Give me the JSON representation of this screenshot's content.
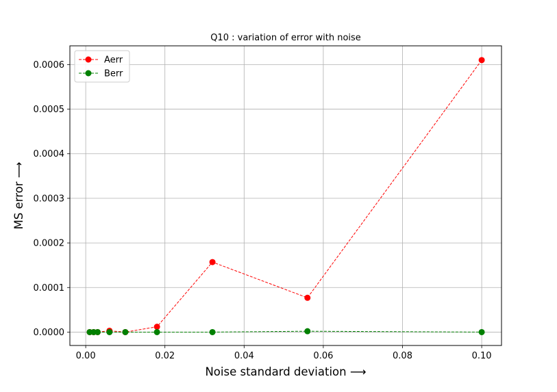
{
  "chart_data": {
    "type": "line",
    "title": "Q10 : variation of error with noise",
    "xlabel": "Noise standard deviation ⟶",
    "ylabel": "MS error ⟶",
    "xlim": [
      -0.004,
      0.105
    ],
    "ylim": [
      -3e-05,
      0.000642
    ],
    "xticks": [
      0.0,
      0.02,
      0.04,
      0.06,
      0.08,
      0.1
    ],
    "xtick_labels": [
      "0.00",
      "0.02",
      "0.04",
      "0.06",
      "0.08",
      "0.10"
    ],
    "yticks": [
      0.0,
      0.0001,
      0.0002,
      0.0003,
      0.0004,
      0.0005,
      0.0006
    ],
    "ytick_labels": [
      "0.0000",
      "0.0001",
      "0.0002",
      "0.0003",
      "0.0004",
      "0.0005",
      "0.0006"
    ],
    "grid": true,
    "legend_position": "top-left",
    "x": [
      0.001,
      0.002,
      0.003,
      0.006,
      0.01,
      0.018,
      0.032,
      0.056,
      0.1
    ],
    "series": [
      {
        "name": "Aerr",
        "color": "#ff0000",
        "marker": "circle",
        "linestyle": "dashed",
        "values": [
          0.0,
          0.0,
          0.0,
          3e-06,
          0.0,
          1.2e-05,
          0.000157,
          7.7e-05,
          0.00061
        ]
      },
      {
        "name": "Berr",
        "color": "#008000",
        "marker": "circle",
        "linestyle": "dashed",
        "values": [
          0.0,
          0.0,
          0.0,
          0.0,
          0.0,
          0.0,
          0.0,
          2e-06,
          0.0
        ]
      }
    ]
  }
}
